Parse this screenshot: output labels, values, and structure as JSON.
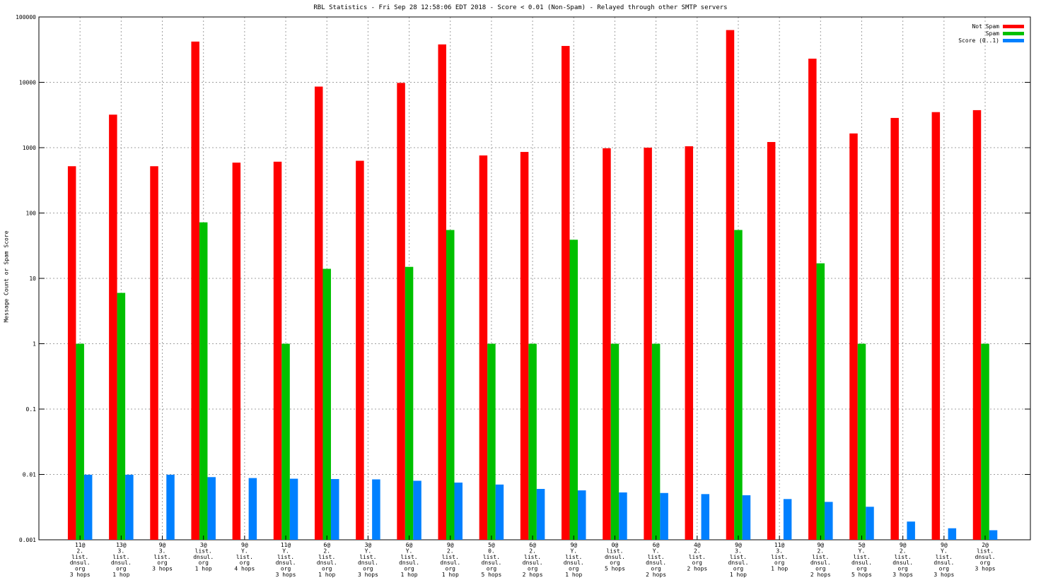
{
  "chart_data": {
    "type": "bar",
    "title": "RBL Statistics - Fri Sep 28 12:58:06 EDT 2018 - Score < 0.01 (Non-Spam) - Relayed through other SMTP servers",
    "xlabel": "",
    "ylabel": "Message Count or Spam Score",
    "yscale": "log",
    "ylim": [
      0.001,
      100000
    ],
    "yticks": [
      "0.001",
      "0.01",
      "0.1",
      "1",
      "10",
      "100",
      "1000",
      "10000",
      "100000"
    ],
    "grid": true,
    "legend_position": "top-right",
    "categories": [
      [
        "11@",
        "2.",
        "list.",
        "dnsul.",
        "org",
        "3 hops"
      ],
      [
        "13@",
        "3.",
        "list.",
        "dnsul.",
        "org",
        "1 hop"
      ],
      [
        "9@",
        "3.",
        "list.",
        "org",
        "3 hops"
      ],
      [
        "3@",
        "list.",
        "dnsul.",
        "org",
        "1 hop"
      ],
      [
        "9@",
        "Y.",
        "list.",
        "org",
        "4 hops"
      ],
      [
        "11@",
        "Y.",
        "list.",
        "dnsul.",
        "org",
        "3 hops"
      ],
      [
        "6@",
        "2.",
        "list.",
        "dnsul.",
        "org",
        "1 hop"
      ],
      [
        "3@",
        "Y.",
        "list.",
        "dnsul.",
        "org",
        "3 hops"
      ],
      [
        "6@",
        "Y.",
        "list.",
        "dnsul.",
        "org",
        "1 hop"
      ],
      [
        "9@",
        "2.",
        "list.",
        "dnsul.",
        "org",
        "1 hop"
      ],
      [
        "5@",
        "0.",
        "list.",
        "dnsul.",
        "org",
        "5 hops"
      ],
      [
        "6@",
        "2.",
        "list.",
        "dnsul.",
        "org",
        "2 hops"
      ],
      [
        "9@",
        "Y.",
        "list.",
        "dnsul.",
        "org",
        "1 hop"
      ],
      [
        "0@",
        "list.",
        "dnsul.",
        "org",
        "5 hops"
      ],
      [
        "6@",
        "Y.",
        "list.",
        "dnsul.",
        "org",
        "2 hops"
      ],
      [
        "4@",
        "2.",
        "list.",
        "org",
        "2 hops"
      ],
      [
        "9@",
        "3.",
        "list.",
        "dnsul.",
        "org",
        "1 hop"
      ],
      [
        "11@",
        "3.",
        "list.",
        "org",
        "1 hop"
      ],
      [
        "9@",
        "2.",
        "list.",
        "dnsul.",
        "org",
        "2 hops"
      ],
      [
        "5@",
        "Y.",
        "list.",
        "dnsul.",
        "org",
        "5 hops"
      ],
      [
        "9@",
        "2.",
        "list.",
        "dnsul.",
        "org",
        "3 hops"
      ],
      [
        "9@",
        "Y.",
        "list.",
        "dnsul.",
        "org",
        "3 hops"
      ],
      [
        "2@",
        "list.",
        "dnsul.",
        "org",
        "3 hops"
      ]
    ],
    "series": [
      {
        "name": "Not Spam",
        "color": "#ff0000",
        "values": [
          520,
          3200,
          520,
          42000,
          590,
          610,
          8600,
          630,
          9800,
          38000,
          760,
          860,
          36000,
          980,
          1000,
          1050,
          63000,
          1220,
          23000,
          1650,
          2850,
          3500,
          3750
        ]
      },
      {
        "name": "Spam",
        "color": "#00c000",
        "values": [
          1,
          6,
          null,
          72,
          null,
          1,
          14,
          null,
          15,
          55,
          1,
          1,
          39,
          1,
          1,
          null,
          55,
          null,
          17,
          1,
          null,
          null,
          1
        ]
      },
      {
        "name": "Score (0..1)",
        "color": "#0080ff",
        "values": [
          0.0099,
          0.0099,
          0.0099,
          0.0091,
          0.0088,
          0.0086,
          0.0085,
          0.0084,
          0.008,
          0.0075,
          0.007,
          0.006,
          0.0057,
          0.0053,
          0.0052,
          0.005,
          0.0048,
          0.0042,
          0.0038,
          0.0032,
          0.0019,
          0.0015,
          0.0014
        ]
      }
    ]
  }
}
